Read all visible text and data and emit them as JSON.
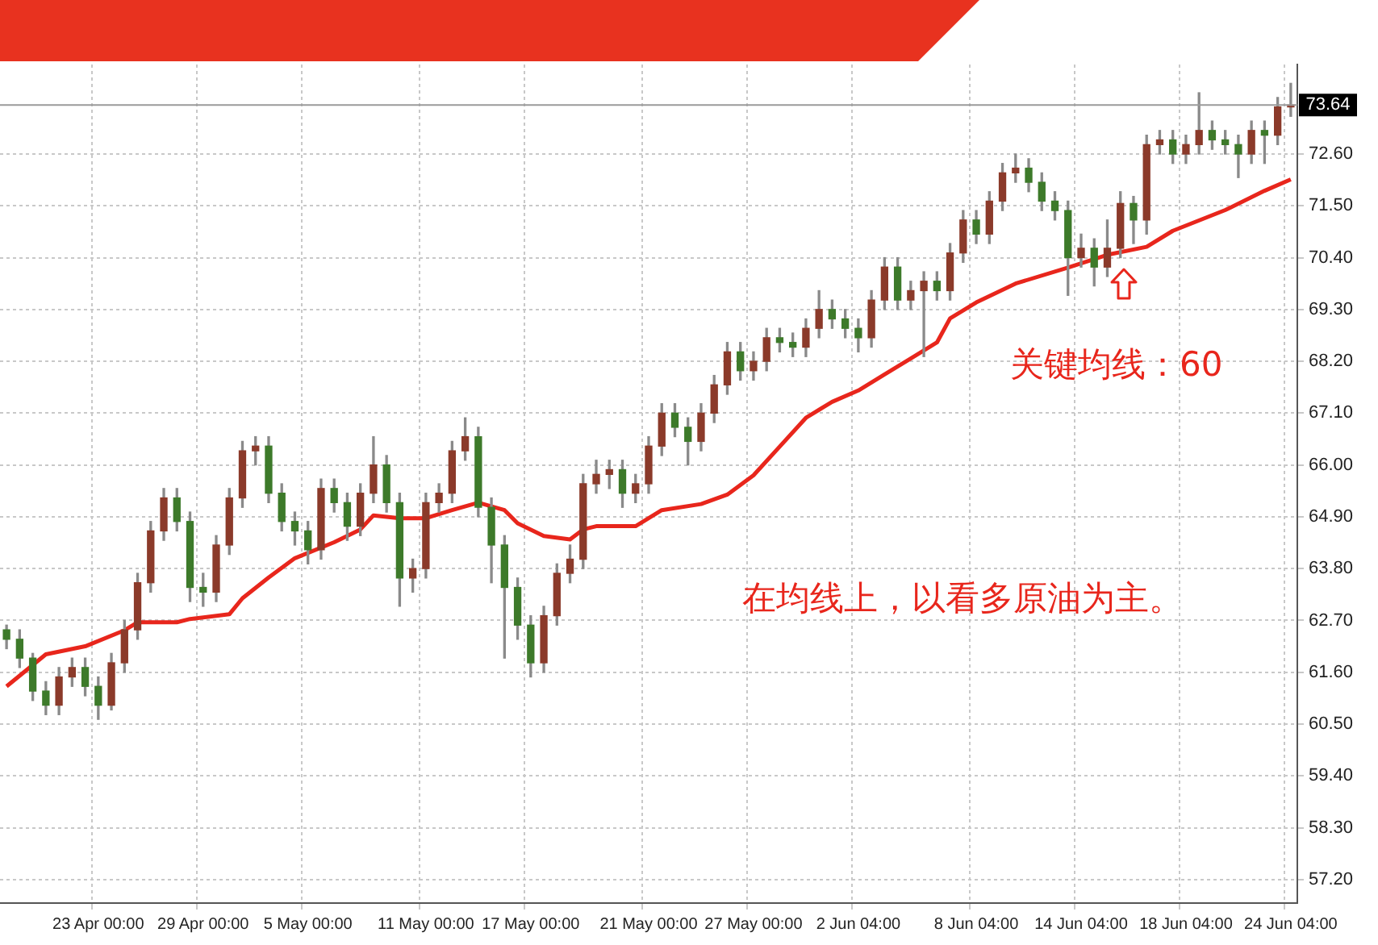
{
  "chart_data": {
    "type": "candlestick",
    "categories": [
      null,
      null,
      null,
      null,
      null,
      null,
      null,
      "23 Apr 00:00",
      null,
      null,
      null,
      null,
      null,
      null,
      null,
      "29 Apr 00:00",
      null,
      null,
      null,
      null,
      null,
      null,
      null,
      "5 May 00:00",
      null,
      null,
      null,
      null,
      null,
      null,
      null,
      null,
      "11 May 00:00",
      null,
      null,
      null,
      null,
      null,
      null,
      null,
      "17 May 00:00",
      null,
      null,
      null,
      null,
      null,
      null,
      null,
      null,
      "21 May 00:00",
      null,
      null,
      null,
      null,
      null,
      null,
      null,
      "27 May 00:00",
      null,
      null,
      null,
      null,
      null,
      null,
      null,
      "2 Jun 04:00",
      null,
      null,
      null,
      null,
      null,
      null,
      null,
      null,
      "8 Jun 04:00",
      null,
      null,
      null,
      null,
      null,
      null,
      null,
      "14 Jun 04:00",
      null,
      null,
      null,
      null,
      null,
      null,
      null,
      "18 Jun 04:00",
      null,
      null,
      null,
      null,
      null,
      null,
      null,
      "24 Jun 04:00"
    ],
    "ohlc": [
      [
        62.5,
        62.6,
        62.1,
        62.3
      ],
      [
        62.3,
        62.5,
        61.7,
        61.9
      ],
      [
        61.9,
        62.0,
        61.0,
        61.2
      ],
      [
        61.2,
        61.4,
        60.7,
        60.9
      ],
      [
        60.9,
        61.7,
        60.7,
        61.5
      ],
      [
        61.5,
        61.9,
        61.3,
        61.7
      ],
      [
        61.7,
        61.9,
        61.1,
        61.3
      ],
      [
        61.3,
        61.5,
        60.6,
        60.9
      ],
      [
        60.9,
        62.0,
        60.8,
        61.8
      ],
      [
        61.8,
        62.7,
        61.6,
        62.5
      ],
      [
        62.5,
        63.7,
        62.3,
        63.5
      ],
      [
        63.5,
        64.8,
        63.3,
        64.6
      ],
      [
        64.6,
        65.5,
        64.4,
        65.3
      ],
      [
        65.3,
        65.5,
        64.6,
        64.8
      ],
      [
        64.8,
        65.0,
        63.1,
        63.4
      ],
      [
        63.4,
        63.7,
        63.0,
        63.3
      ],
      [
        63.3,
        64.5,
        63.1,
        64.3
      ],
      [
        64.3,
        65.5,
        64.1,
        65.3
      ],
      [
        65.3,
        66.5,
        65.1,
        66.3
      ],
      [
        66.3,
        66.6,
        66.0,
        66.4
      ],
      [
        66.4,
        66.6,
        65.2,
        65.4
      ],
      [
        65.4,
        65.6,
        64.6,
        64.8
      ],
      [
        64.8,
        65.0,
        64.3,
        64.6
      ],
      [
        64.6,
        64.8,
        63.9,
        64.2
      ],
      [
        64.2,
        65.7,
        64.0,
        65.5
      ],
      [
        65.5,
        65.7,
        65.0,
        65.2
      ],
      [
        65.2,
        65.4,
        64.4,
        64.7
      ],
      [
        64.7,
        65.6,
        64.5,
        65.4
      ],
      [
        65.4,
        66.6,
        65.2,
        66.0
      ],
      [
        66.0,
        66.2,
        65.0,
        65.2
      ],
      [
        65.2,
        65.4,
        63.0,
        63.6
      ],
      [
        63.6,
        64.0,
        63.3,
        63.8
      ],
      [
        63.8,
        65.4,
        63.6,
        65.2
      ],
      [
        65.2,
        65.6,
        65.0,
        65.4
      ],
      [
        65.4,
        66.5,
        65.2,
        66.3
      ],
      [
        66.3,
        67.0,
        66.1,
        66.6
      ],
      [
        66.6,
        66.8,
        64.9,
        65.1
      ],
      [
        65.1,
        65.3,
        63.5,
        64.3
      ],
      [
        64.3,
        64.5,
        61.9,
        63.4
      ],
      [
        63.4,
        63.6,
        62.3,
        62.6
      ],
      [
        62.6,
        62.8,
        61.5,
        61.8
      ],
      [
        61.8,
        63.0,
        61.6,
        62.8
      ],
      [
        62.8,
        63.9,
        62.6,
        63.7
      ],
      [
        63.7,
        64.3,
        63.5,
        64.0
      ],
      [
        64.0,
        65.8,
        63.8,
        65.6
      ],
      [
        65.6,
        66.1,
        65.4,
        65.8
      ],
      [
        65.8,
        66.1,
        65.5,
        65.9
      ],
      [
        65.9,
        66.1,
        65.1,
        65.4
      ],
      [
        65.4,
        65.8,
        65.2,
        65.6
      ],
      [
        65.6,
        66.6,
        65.4,
        66.4
      ],
      [
        66.4,
        67.3,
        66.2,
        67.1
      ],
      [
        67.1,
        67.3,
        66.6,
        66.8
      ],
      [
        66.8,
        67.0,
        66.0,
        66.5
      ],
      [
        66.5,
        67.3,
        66.3,
        67.1
      ],
      [
        67.1,
        67.9,
        66.9,
        67.7
      ],
      [
        67.7,
        68.6,
        67.5,
        68.4
      ],
      [
        68.4,
        68.6,
        67.8,
        68.0
      ],
      [
        68.0,
        68.4,
        67.8,
        68.2
      ],
      [
        68.2,
        68.9,
        68.0,
        68.7
      ],
      [
        68.7,
        68.9,
        68.4,
        68.6
      ],
      [
        68.6,
        68.8,
        68.3,
        68.5
      ],
      [
        68.5,
        69.1,
        68.3,
        68.9
      ],
      [
        68.9,
        69.7,
        68.7,
        69.3
      ],
      [
        69.3,
        69.5,
        68.9,
        69.1
      ],
      [
        69.1,
        69.3,
        68.7,
        68.9
      ],
      [
        68.9,
        69.1,
        68.4,
        68.7
      ],
      [
        68.7,
        69.7,
        68.5,
        69.5
      ],
      [
        69.5,
        70.4,
        69.3,
        70.2
      ],
      [
        70.2,
        70.4,
        69.3,
        69.5
      ],
      [
        69.5,
        69.9,
        69.3,
        69.7
      ],
      [
        69.7,
        70.1,
        68.3,
        69.9
      ],
      [
        69.9,
        70.1,
        69.5,
        69.7
      ],
      [
        69.7,
        70.7,
        69.5,
        70.5
      ],
      [
        70.5,
        71.4,
        70.3,
        71.2
      ],
      [
        71.2,
        71.4,
        70.7,
        70.9
      ],
      [
        70.9,
        71.8,
        70.7,
        71.6
      ],
      [
        71.6,
        72.4,
        71.4,
        72.2
      ],
      [
        72.2,
        72.6,
        72.0,
        72.3
      ],
      [
        72.3,
        72.5,
        71.8,
        72.0
      ],
      [
        72.0,
        72.2,
        71.4,
        71.6
      ],
      [
        71.6,
        71.8,
        71.2,
        71.4
      ],
      [
        71.4,
        71.6,
        69.6,
        70.4
      ],
      [
        70.4,
        70.9,
        70.2,
        70.6
      ],
      [
        70.6,
        70.8,
        69.8,
        70.2
      ],
      [
        70.2,
        71.2,
        70.0,
        70.6
      ],
      [
        70.6,
        71.8,
        70.4,
        71.55
      ],
      [
        71.55,
        71.7,
        70.7,
        71.2
      ],
      [
        71.2,
        73.0,
        70.9,
        72.8
      ],
      [
        72.8,
        73.1,
        72.6,
        72.9
      ],
      [
        72.9,
        73.1,
        72.4,
        72.6
      ],
      [
        72.6,
        73.0,
        72.4,
        72.8
      ],
      [
        72.8,
        73.9,
        72.6,
        73.1
      ],
      [
        73.1,
        73.3,
        72.7,
        72.9
      ],
      [
        72.9,
        73.1,
        72.6,
        72.8
      ],
      [
        72.8,
        73.0,
        72.1,
        72.6
      ],
      [
        72.6,
        73.3,
        72.4,
        73.1
      ],
      [
        73.1,
        73.3,
        72.4,
        73.0
      ],
      [
        73.0,
        73.8,
        72.8,
        73.6
      ],
      [
        73.6,
        74.1,
        73.4,
        73.64
      ]
    ],
    "colors": [
      "#3d7a2a",
      "#3d7a2a",
      "#3d7a2a",
      "#3d7a2a",
      "#8b3a2a",
      "#8b3a2a",
      "#3d7a2a",
      "#3d7a2a",
      "#8b3a2a",
      "#8b3a2a",
      "#8b3a2a",
      "#8b3a2a",
      "#8b3a2a",
      "#3d7a2a",
      "#3d7a2a",
      "#3d7a2a",
      "#8b3a2a",
      "#8b3a2a",
      "#8b3a2a",
      "#8b3a2a",
      "#3d7a2a",
      "#3d7a2a",
      "#3d7a2a",
      "#3d7a2a",
      "#8b3a2a",
      "#3d7a2a",
      "#3d7a2a",
      "#8b3a2a",
      "#8b3a2a",
      "#3d7a2a",
      "#3d7a2a",
      "#8b3a2a",
      "#8b3a2a",
      "#8b3a2a",
      "#8b3a2a",
      "#8b3a2a",
      "#3d7a2a",
      "#3d7a2a",
      "#3d7a2a",
      "#3d7a2a",
      "#3d7a2a",
      "#8b3a2a",
      "#8b3a2a",
      "#8b3a2a",
      "#8b3a2a",
      "#8b3a2a",
      "#8b3a2a",
      "#3d7a2a",
      "#8b3a2a",
      "#8b3a2a",
      "#8b3a2a",
      "#3d7a2a",
      "#3d7a2a",
      "#8b3a2a",
      "#8b3a2a",
      "#8b3a2a",
      "#3d7a2a",
      "#8b3a2a",
      "#8b3a2a",
      "#3d7a2a",
      "#3d7a2a",
      "#8b3a2a",
      "#8b3a2a",
      "#3d7a2a",
      "#3d7a2a",
      "#3d7a2a",
      "#8b3a2a",
      "#8b3a2a",
      "#3d7a2a",
      "#8b3a2a",
      "#8b3a2a",
      "#3d7a2a",
      "#8b3a2a",
      "#8b3a2a",
      "#3d7a2a",
      "#8b3a2a",
      "#8b3a2a",
      "#8b3a2a",
      "#3d7a2a",
      "#3d7a2a",
      "#3d7a2a",
      "#3d7a2a",
      "#8b3a2a",
      "#3d7a2a",
      "#8b3a2a",
      "#8b3a2a",
      "#3d7a2a",
      "#8b3a2a",
      "#8b3a2a",
      "#3d7a2a",
      "#8b3a2a",
      "#8b3a2a",
      "#3d7a2a",
      "#3d7a2a",
      "#3d7a2a",
      "#8b3a2a",
      "#3d7a2a",
      "#8b3a2a",
      "#8b3a2a"
    ],
    "series": [
      {
        "type": "line",
        "color": "#e8261c",
        "values": [
          61.3,
          null,
          null,
          61.98,
          null,
          null,
          62.15,
          null,
          null,
          62.49,
          62.66,
          null,
          null,
          62.66,
          62.73,
          null,
          null,
          62.83,
          63.17,
          null,
          63.61,
          null,
          64.02,
          null,
          null,
          64.36,
          null,
          64.63,
          64.93,
          null,
          64.87,
          null,
          64.87,
          null,
          65.04,
          null,
          65.2,
          null,
          65.04,
          64.76,
          null,
          64.49,
          null,
          64.42,
          64.63,
          64.7,
          null,
          null,
          64.7,
          null,
          65.04,
          null,
          null,
          65.17,
          null,
          65.37,
          null,
          65.78,
          null,
          66.39,
          null,
          67.0,
          null,
          67.34,
          null,
          67.58,
          null,
          67.92,
          null,
          68.26,
          null,
          68.6,
          69.11,
          null,
          69.45,
          null,
          null,
          69.85,
          null,
          null,
          null,
          70.19,
          null,
          null,
          70.46,
          null,
          null,
          70.63,
          null,
          70.97,
          null,
          null,
          null,
          71.41,
          null,
          null,
          71.82,
          null,
          72.06
        ]
      }
    ],
    "ylim": [
      56.7,
      74.5
    ],
    "yticks": [
      {
        "value": 57.2,
        "label": "57.20"
      },
      {
        "value": 58.3,
        "label": "58.30"
      },
      {
        "value": 59.4,
        "label": "59.40"
      },
      {
        "value": 60.5,
        "label": "60.50"
      },
      {
        "value": 61.6,
        "label": "61.60"
      },
      {
        "value": 62.7,
        "label": "62.70"
      },
      {
        "value": 63.8,
        "label": "63.80"
      },
      {
        "value": 64.9,
        "label": "64.90"
      },
      {
        "value": 66.0,
        "label": "66.00"
      },
      {
        "value": 67.1,
        "label": "67.10"
      },
      {
        "value": 68.2,
        "label": "68.20"
      },
      {
        "value": 69.3,
        "label": "69.30"
      },
      {
        "value": 70.4,
        "label": "70.40"
      },
      {
        "value": 71.5,
        "label": "71.50"
      },
      {
        "value": 72.6,
        "label": "72.60"
      }
    ],
    "ref_lines": [
      {
        "axis": "y",
        "value": 73.64,
        "label": "73.64"
      }
    ],
    "annotations": [
      "关键均线：60",
      "在均线上，以看多原油为主。"
    ],
    "grid": true,
    "legend": false
  }
}
